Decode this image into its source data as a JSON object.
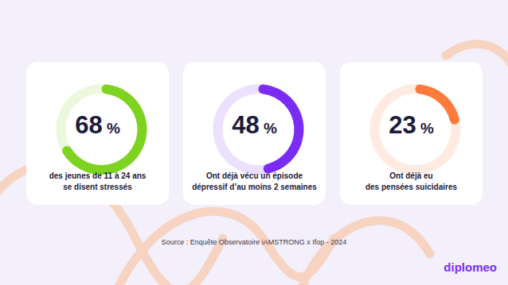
{
  "chart_data": [
    {
      "type": "donut",
      "values": [
        68
      ],
      "value_labels": [
        "68 %"
      ],
      "ylim": [
        0,
        100
      ],
      "color": "#7ed321",
      "data_labels": true,
      "annotations": [
        "des jeunes de 11 à 24 ans",
        "se disent stressés"
      ]
    },
    {
      "type": "donut",
      "values": [
        48
      ],
      "value_labels": [
        "48 %"
      ],
      "ylim": [
        0,
        100
      ],
      "color": "#7a2cf5",
      "data_labels": true,
      "annotations": [
        "Ont déjà vécu un épisode",
        "dépressif d’au moins 2 semaines"
      ]
    },
    {
      "type": "donut",
      "values": [
        23
      ],
      "value_labels": [
        "23 %"
      ],
      "ylim": [
        0,
        100
      ],
      "color": "#ff7a3d",
      "data_labels": true,
      "annotations": [
        "Ont déjà eu",
        "des pensées suicidaires"
      ]
    }
  ],
  "source": "Source : Enquête Observatoire iAMSTRONG x Ifop - 2024",
  "logo": "diplomeo"
}
